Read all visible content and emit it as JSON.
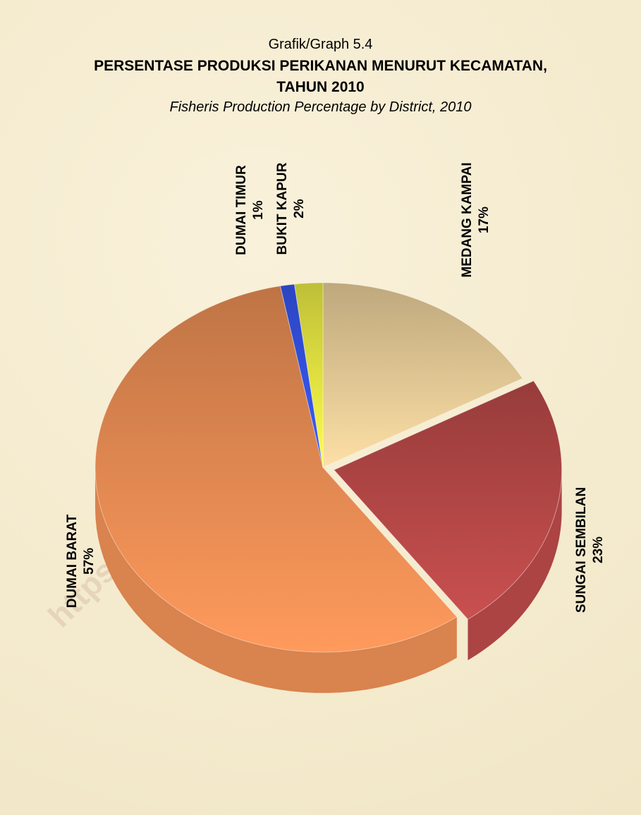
{
  "chart_data": {
    "type": "pie",
    "pretitle": "Grafik/Graph 5.4",
    "title": "PERSENTASE PRODUKSI PERIKANAN MENURUT KECAMATAN, TAHUN 2010",
    "subtitle": "Fisheris Production Percentage by District, 2010",
    "watermark": "https://dumaikota.bps.go.id",
    "categories": [
      "MEDANG KAMPAI",
      "SUNGAI SEMBILAN",
      "DUMAI BARAT",
      "DUMAI TIMUR",
      "BUKIT KAPUR"
    ],
    "values": [
      17,
      23,
      57,
      1,
      2
    ],
    "value_labels": [
      "17%",
      "23%",
      "57%",
      "1%",
      "2%"
    ],
    "colors": [
      "#fde0a6",
      "#c9504f",
      "#ff9a5c",
      "#3a5cff",
      "#ffff4a"
    ]
  }
}
